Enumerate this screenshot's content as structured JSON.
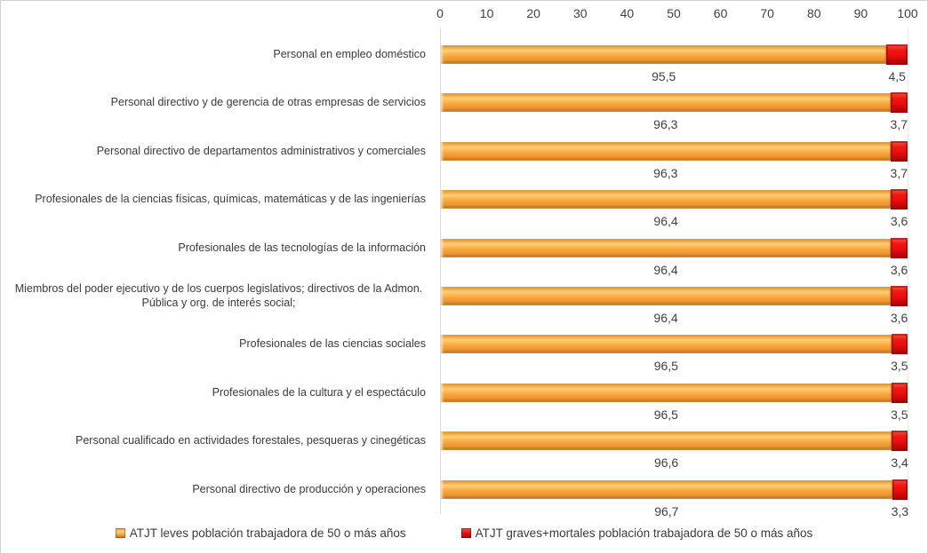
{
  "chart_data": {
    "type": "bar",
    "orientation": "horizontal-stacked",
    "title": "",
    "categories": [
      "Personal en empleo doméstico",
      "Personal directivo y de gerencia de otras empresas de servicios",
      "Personal directivo de departamentos administrativos y comerciales",
      "Profesionales de la ciencias físicas, químicas, matemáticas y de las ingenierías",
      "Profesionales de las tecnologías de la información",
      "Miembros del poder ejecutivo y de los cuerpos legislativos; directivos de la Admon. Pública y org. de interés social;",
      "Profesionales de las ciencias sociales",
      "Profesionales de la cultura y el espectáculo",
      "Personal cualificado en actividades forestales, pesqueras y cinegéticas",
      "Personal directivo de producción y operaciones"
    ],
    "series": [
      {
        "name": "ATJT leves población trabajadora de 50 o más años",
        "color": "#F29D33",
        "values": [
          95.5,
          96.3,
          96.3,
          96.4,
          96.4,
          96.4,
          96.5,
          96.5,
          96.6,
          96.7
        ]
      },
      {
        "name": "ATJT graves+mortales población trabajadora de 50 o más años",
        "color": "#EE1111",
        "values": [
          4.5,
          3.7,
          3.7,
          3.6,
          3.6,
          3.6,
          3.5,
          3.5,
          3.4,
          3.3
        ]
      }
    ],
    "x_axis": {
      "position": "top",
      "min": 0,
      "max": 100,
      "ticks": [
        0,
        10,
        20,
        30,
        40,
        50,
        60,
        70,
        80,
        90,
        100
      ]
    },
    "value_labels": "below-segment-center",
    "decimal_separator": ",",
    "legend_position": "bottom",
    "grid": false
  }
}
